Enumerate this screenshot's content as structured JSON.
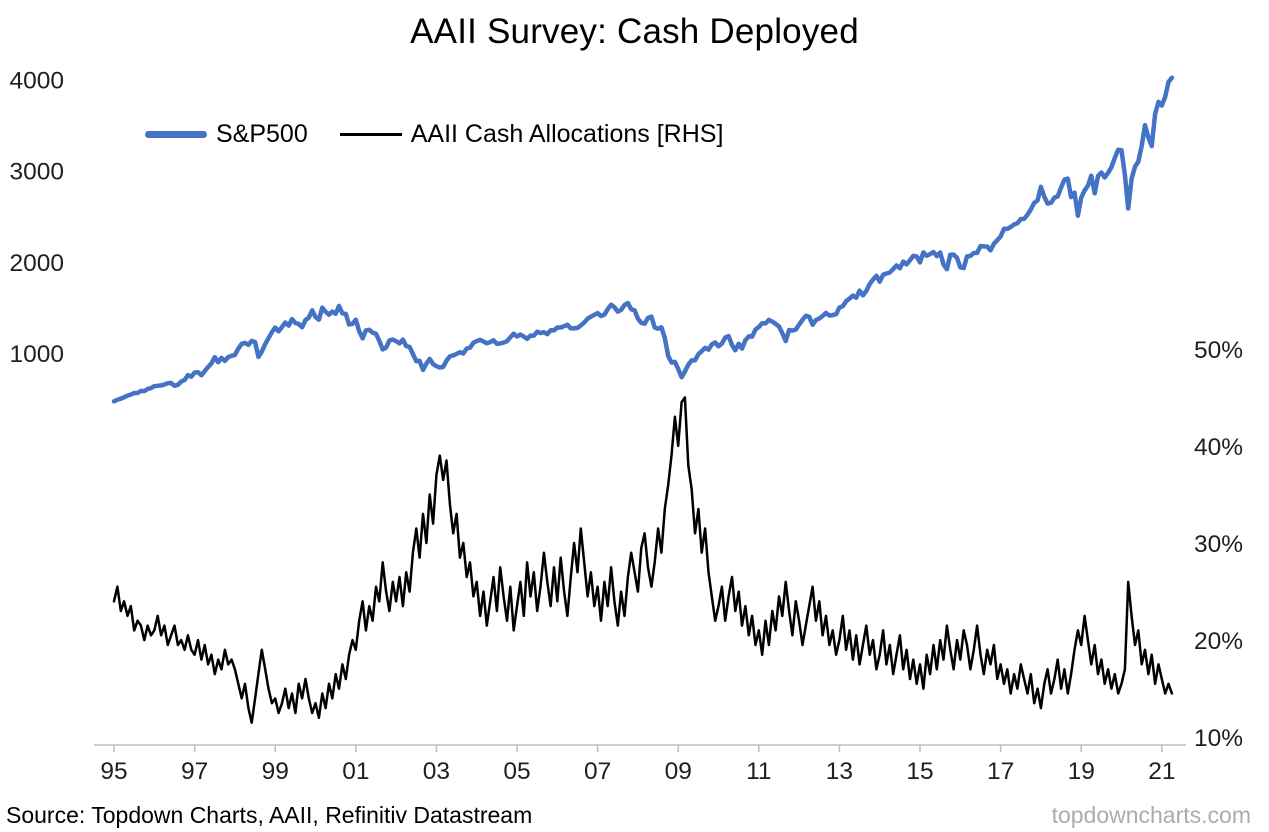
{
  "chart_data": {
    "type": "line",
    "title": "AAII Survey: Cash Deployed",
    "x_start_year": 1995,
    "points_per_year": 12,
    "grid": false,
    "legend_position": "top-left-inside",
    "x_axis": {
      "tick_labels": [
        "95",
        "97",
        "99",
        "01",
        "03",
        "05",
        "07",
        "09",
        "11",
        "13",
        "15",
        "17",
        "19",
        "21"
      ],
      "tick_years": [
        1995,
        1997,
        1999,
        2001,
        2003,
        2005,
        2007,
        2009,
        2011,
        2013,
        2015,
        2017,
        2019,
        2021
      ],
      "range": [
        1994.85,
        2021.6
      ]
    },
    "left_axis": {
      "tick_labels": [
        "1000",
        "2000",
        "3000",
        "4000"
      ],
      "tick_values": [
        1000,
        2000,
        3000,
        4000
      ],
      "range": [
        -3300,
        4050
      ]
    },
    "right_axis": {
      "tick_labels": [
        "10%",
        "20%",
        "30%",
        "40%",
        "50%"
      ],
      "tick_values": [
        10,
        20,
        30,
        40,
        50
      ],
      "range": [
        9.2,
        78.2
      ]
    },
    "series": [
      {
        "name": "S&P500",
        "axis": "left",
        "color": "#4472C4",
        "stroke_width": 4.5,
        "values": [
          470,
          487,
          500,
          514,
          533,
          544,
          562,
          561,
          584,
          582,
          605,
          615,
          636,
          640,
          645,
          654,
          669,
          671,
          640,
          651,
          687,
          705,
          757,
          740,
          786,
          790,
          757,
          801,
          848,
          885,
          954,
          899,
          947,
          914,
          955,
          970,
          980,
          1049,
          1101,
          1111,
          1090,
          1133,
          1120,
          957,
          1017,
          1098,
          1163,
          1229,
          1279,
          1238,
          1286,
          1335,
          1301,
          1372,
          1328,
          1320,
          1282,
          1362,
          1388,
          1469,
          1394,
          1366,
          1498,
          1452,
          1420,
          1454,
          1430,
          1517,
          1436,
          1429,
          1314,
          1320,
          1366,
          1239,
          1160,
          1249,
          1255,
          1224,
          1211,
          1133,
          1040,
          1059,
          1139,
          1148,
          1130,
          1106,
          1147,
          1076,
          1067,
          989,
          911,
          916,
          815,
          885,
          936,
          879,
          855,
          841,
          848,
          916,
          963,
          974,
          990,
          1008,
          995,
          1050,
          1058,
          1112,
          1131,
          1144,
          1126,
          1107,
          1120,
          1140,
          1101,
          1104,
          1114,
          1130,
          1173,
          1212,
          1181,
          1203,
          1180,
          1156,
          1191,
          1191,
          1234,
          1220,
          1228,
          1207,
          1249,
          1248,
          1280,
          1280,
          1294,
          1310,
          1270,
          1270,
          1276,
          1303,
          1335,
          1377,
          1400,
          1418,
          1438,
          1406,
          1420,
          1482,
          1530,
          1503,
          1455,
          1473,
          1526,
          1549,
          1481,
          1468,
          1378,
          1330,
          1322,
          1385,
          1400,
          1280,
          1267,
          1282,
          1166,
          968,
          896,
          903,
          825,
          735,
          797,
          872,
          919,
          919,
          987,
          1020,
          1057,
          1036,
          1095,
          1115,
          1073,
          1104,
          1169,
          1186,
          1089,
          1030,
          1101,
          1049,
          1141,
          1183,
          1180,
          1258,
          1286,
          1327,
          1325,
          1363,
          1345,
          1320,
          1292,
          1218,
          1131,
          1253,
          1246,
          1258,
          1312,
          1365,
          1408,
          1397,
          1310,
          1362,
          1379,
          1406,
          1440,
          1412,
          1416,
          1426,
          1498,
          1514,
          1569,
          1597,
          1630,
          1606,
          1685,
          1632,
          1681,
          1756,
          1805,
          1848,
          1782,
          1859,
          1872,
          1883,
          1923,
          1960,
          1930,
          2003,
          1972,
          2018,
          2067,
          2059,
          1994,
          2104,
          2067,
          2085,
          2107,
          2063,
          2103,
          1972,
          1920,
          2079,
          2080,
          2044,
          1940,
          1932,
          2059,
          2065,
          2097,
          2098,
          2173,
          2170,
          2168,
          2126,
          2198,
          2239,
          2278,
          2363,
          2362,
          2384,
          2411,
          2423,
          2470,
          2471,
          2519,
          2575,
          2647,
          2674,
          2824,
          2714,
          2640,
          2648,
          2705,
          2718,
          2816,
          2901,
          2914,
          2711,
          2760,
          2507,
          2704,
          2784,
          2834,
          2945,
          2752,
          2941,
          2980,
          2926,
          2977,
          3037,
          3141,
          3231,
          3225,
          2954,
          2585,
          2912,
          3044,
          3100,
          3271,
          3500,
          3363,
          3270,
          3622,
          3756,
          3714,
          3811,
          3973,
          4020
        ]
      },
      {
        "name": "AAII Cash Allocations [RHS]",
        "axis": "right",
        "color": "#000000",
        "stroke_width": 2.5,
        "values": [
          24,
          25.5,
          23,
          24,
          22.5,
          23.5,
          21,
          22,
          21.5,
          20,
          21.5,
          20.5,
          21,
          22.5,
          20.5,
          21.5,
          19.5,
          20.5,
          21.5,
          19.5,
          20,
          19,
          20.5,
          19,
          18.5,
          20,
          18,
          19.5,
          17.5,
          18.5,
          16.5,
          18,
          17,
          19,
          17.5,
          18,
          17,
          15.5,
          14,
          15.5,
          13,
          11.5,
          14,
          16.5,
          19,
          17,
          15,
          13.5,
          14,
          12.5,
          13.5,
          15,
          13,
          14.5,
          12.5,
          15.5,
          14,
          16,
          14,
          12.5,
          13.5,
          12,
          14.5,
          13,
          15.5,
          14,
          16.5,
          15,
          17.5,
          16,
          18.5,
          20,
          19,
          22,
          24,
          21,
          23.5,
          22,
          25.5,
          24,
          28,
          25,
          23,
          26,
          24,
          26.5,
          23.5,
          27,
          25,
          29,
          31.5,
          28.5,
          33,
          30,
          35,
          32,
          37,
          39,
          36.5,
          38.5,
          34,
          31,
          33,
          28.5,
          30,
          26.5,
          28,
          24.5,
          26,
          22.5,
          25,
          21.5,
          24,
          26.5,
          23,
          27.5,
          24.5,
          22,
          25.5,
          21,
          23.5,
          26,
          22.5,
          28,
          24.5,
          27,
          23,
          25.5,
          29,
          26,
          23.5,
          27.5,
          24,
          28.5,
          25,
          22.5,
          26.5,
          30,
          27,
          31.5,
          28,
          24.5,
          27,
          23.5,
          25.5,
          22,
          26,
          23.5,
          27.5,
          24,
          21.5,
          25,
          22.5,
          26.5,
          29,
          27,
          25,
          29.5,
          31,
          27.5,
          25.5,
          28,
          31.5,
          29,
          33.5,
          36,
          39,
          43,
          40,
          44.5,
          45,
          38,
          35.5,
          31,
          33.5,
          29,
          31.5,
          27,
          24.5,
          22,
          23.5,
          25.5,
          22,
          24.5,
          26.5,
          23,
          25,
          21.5,
          23.5,
          20.5,
          22.5,
          19.5,
          21,
          18.5,
          22,
          19.5,
          23,
          21,
          24.5,
          22.5,
          26,
          23,
          20.5,
          24,
          22,
          19.5,
          21.5,
          23.5,
          25.5,
          22,
          24,
          20.5,
          22.5,
          19.5,
          21,
          18.5,
          20,
          22.5,
          19,
          21,
          18,
          20.5,
          17.5,
          19.5,
          21.5,
          18.5,
          20,
          17,
          18.5,
          21,
          17.5,
          19.5,
          16.5,
          18.5,
          20.5,
          17,
          19,
          16,
          18,
          15.5,
          17.5,
          15,
          18.5,
          16.5,
          19.5,
          17,
          20,
          18,
          21.5,
          19,
          17,
          20,
          18,
          21,
          19.5,
          17,
          19,
          21.5,
          18.5,
          16.5,
          19,
          17.5,
          19.5,
          16,
          17.5,
          15.5,
          17,
          14.5,
          16.5,
          15,
          17.5,
          16,
          14.5,
          16.5,
          13.5,
          15,
          13,
          15.5,
          17,
          14.5,
          16,
          18,
          15,
          17,
          14.5,
          16.5,
          19,
          21,
          19.5,
          22.5,
          20,
          17.5,
          19.5,
          16.5,
          18,
          15.5,
          17,
          15,
          16.5,
          14.5,
          15.5,
          17,
          26,
          22.5,
          19.5,
          21,
          17.5,
          19,
          16.5,
          18.5,
          15.5,
          17.5,
          16,
          14.5,
          15.5,
          14.5
        ]
      }
    ],
    "axis_color": "#bfbfbf",
    "tick_text_color": "#1f1f1f"
  },
  "footer": {
    "source": "Source: Topdown Charts, AAII, Refinitiv Datastream",
    "watermark": "topdowncharts.com"
  }
}
